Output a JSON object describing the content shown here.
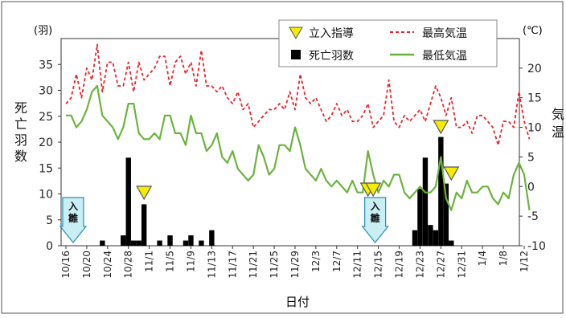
{
  "colors": {
    "max_temp": "#e8262b",
    "min_temp": "#6cb33e",
    "deaths": "#000000",
    "marker_fill": "#f5ec00",
    "marker_stroke": "#555555",
    "arrow_fill": "#c9eef3",
    "arrow_stroke": "#2a8fb0"
  },
  "chart_data": {
    "type": "bar+line",
    "title": "",
    "xlabel": "日付",
    "y_left": {
      "unit_label": "(羽)",
      "label": "死亡羽数",
      "ylim": [
        0,
        40
      ],
      "ticks": [
        "0",
        "5",
        "10",
        "15",
        "20",
        "25",
        "30",
        "35"
      ]
    },
    "y_right": {
      "unit_label": "(℃)",
      "label": "気温",
      "ylim": [
        -10,
        25
      ],
      "ticks": [
        "-10",
        "-5",
        "0",
        "5",
        "10",
        "15",
        "20"
      ]
    },
    "x_ticks": [
      "10/16",
      "10/20",
      "10/24",
      "10/28",
      "11/1",
      "11/5",
      "11/9",
      "11/13",
      "11/17",
      "11/21",
      "11/25",
      "11/29",
      "12/3",
      "12/7",
      "12/11",
      "12/15",
      "12/19",
      "12/23",
      "12/27",
      "12/31",
      "1/4",
      "1/8",
      "1/12"
    ],
    "x_range_days": [
      0,
      88
    ],
    "legend": {
      "placement": "top-right",
      "entries": [
        {
          "key": "marker",
          "label": "立入指導"
        },
        {
          "key": "max",
          "label": "最高気温"
        },
        {
          "key": "deaths",
          "label": "死亡羽数"
        },
        {
          "key": "min",
          "label": "最低気温"
        }
      ]
    },
    "series": [
      {
        "name": "死亡羽数",
        "type": "bar",
        "axis": "left",
        "points": [
          [
            7,
            1
          ],
          [
            11,
            2
          ],
          [
            12,
            17
          ],
          [
            13,
            1
          ],
          [
            14,
            1
          ],
          [
            15,
            8
          ],
          [
            18,
            1
          ],
          [
            20,
            2
          ],
          [
            23,
            1
          ],
          [
            24,
            2
          ],
          [
            26,
            1
          ],
          [
            28,
            3
          ],
          [
            67,
            3
          ],
          [
            68,
            11
          ],
          [
            69,
            17
          ],
          [
            70,
            4
          ],
          [
            71,
            3
          ],
          [
            72,
            21
          ],
          [
            73,
            12
          ],
          [
            74,
            1
          ]
        ]
      },
      {
        "name": "最高気温",
        "type": "line",
        "axis": "right",
        "points": [
          [
            0,
            14
          ],
          [
            1,
            15
          ],
          [
            2,
            19
          ],
          [
            3,
            15
          ],
          [
            4,
            20
          ],
          [
            5,
            18
          ],
          [
            6,
            24
          ],
          [
            7,
            16
          ],
          [
            8,
            21
          ],
          [
            9,
            21
          ],
          [
            10,
            17
          ],
          [
            11,
            17
          ],
          [
            12,
            21
          ],
          [
            13,
            16
          ],
          [
            14,
            21
          ],
          [
            15,
            18
          ],
          [
            16,
            19
          ],
          [
            17,
            20
          ],
          [
            18,
            22
          ],
          [
            19,
            22
          ],
          [
            20,
            17
          ],
          [
            21,
            21
          ],
          [
            22,
            22
          ],
          [
            23,
            19
          ],
          [
            24,
            21
          ],
          [
            25,
            17
          ],
          [
            26,
            23
          ],
          [
            27,
            17
          ],
          [
            28,
            17
          ],
          [
            29,
            16
          ],
          [
            30,
            17
          ],
          [
            31,
            15
          ],
          [
            32,
            14
          ],
          [
            33,
            16
          ],
          [
            34,
            13
          ],
          [
            35,
            14
          ],
          [
            36,
            10
          ],
          [
            37,
            11
          ],
          [
            38,
            12
          ],
          [
            39,
            13
          ],
          [
            40,
            13
          ],
          [
            41,
            14
          ],
          [
            42,
            13
          ],
          [
            43,
            16
          ],
          [
            44,
            13
          ],
          [
            45,
            19
          ],
          [
            46,
            15
          ],
          [
            47,
            14
          ],
          [
            48,
            15
          ],
          [
            49,
            13
          ],
          [
            50,
            11
          ],
          [
            51,
            12
          ],
          [
            52,
            14
          ],
          [
            53,
            12
          ],
          [
            54,
            13
          ],
          [
            55,
            11
          ],
          [
            56,
            11
          ],
          [
            57,
            12
          ],
          [
            58,
            14
          ],
          [
            59,
            10
          ],
          [
            60,
            11
          ],
          [
            61,
            12
          ],
          [
            62,
            18
          ],
          [
            63,
            11
          ],
          [
            64,
            10
          ],
          [
            65,
            12
          ],
          [
            66,
            11
          ],
          [
            67,
            12
          ],
          [
            68,
            13
          ],
          [
            69,
            11
          ],
          [
            70,
            14
          ],
          [
            71,
            17
          ],
          [
            72,
            15
          ],
          [
            73,
            12
          ],
          [
            74,
            15
          ],
          [
            75,
            10
          ],
          [
            76,
            10
          ],
          [
            77,
            11
          ],
          [
            78,
            9
          ],
          [
            79,
            12
          ],
          [
            80,
            12
          ],
          [
            81,
            11
          ],
          [
            82,
            10
          ],
          [
            83,
            7
          ],
          [
            84,
            11
          ],
          [
            85,
            11
          ],
          [
            86,
            10
          ],
          [
            87,
            16
          ],
          [
            88,
            11
          ],
          [
            89,
            8
          ]
        ]
      },
      {
        "name": "最低気温",
        "type": "line",
        "axis": "right",
        "points": [
          [
            0,
            12
          ],
          [
            1,
            12
          ],
          [
            2,
            10
          ],
          [
            3,
            11
          ],
          [
            4,
            13
          ],
          [
            5,
            16
          ],
          [
            6,
            17
          ],
          [
            7,
            12
          ],
          [
            8,
            11
          ],
          [
            9,
            10
          ],
          [
            10,
            8
          ],
          [
            11,
            10
          ],
          [
            12,
            14
          ],
          [
            13,
            14
          ],
          [
            14,
            9
          ],
          [
            15,
            8
          ],
          [
            16,
            8
          ],
          [
            17,
            9
          ],
          [
            18,
            8
          ],
          [
            19,
            12
          ],
          [
            20,
            12
          ],
          [
            21,
            9
          ],
          [
            22,
            9
          ],
          [
            23,
            7
          ],
          [
            24,
            12
          ],
          [
            25,
            9
          ],
          [
            26,
            9
          ],
          [
            27,
            6
          ],
          [
            28,
            7
          ],
          [
            29,
            9
          ],
          [
            30,
            5
          ],
          [
            31,
            4
          ],
          [
            32,
            6
          ],
          [
            33,
            3
          ],
          [
            34,
            2
          ],
          [
            35,
            1
          ],
          [
            36,
            2
          ],
          [
            37,
            7
          ],
          [
            38,
            5
          ],
          [
            39,
            2
          ],
          [
            40,
            3
          ],
          [
            41,
            7
          ],
          [
            42,
            7
          ],
          [
            43,
            6
          ],
          [
            44,
            10
          ],
          [
            45,
            7
          ],
          [
            46,
            3
          ],
          [
            47,
            2
          ],
          [
            48,
            1
          ],
          [
            49,
            3
          ],
          [
            50,
            1
          ],
          [
            51,
            0
          ],
          [
            52,
            1
          ],
          [
            53,
            0
          ],
          [
            54,
            -1
          ],
          [
            55,
            1
          ],
          [
            56,
            -1
          ],
          [
            57,
            -1
          ],
          [
            58,
            6
          ],
          [
            59,
            2
          ],
          [
            60,
            -1
          ],
          [
            61,
            1
          ],
          [
            62,
            0
          ],
          [
            63,
            2
          ],
          [
            64,
            2
          ],
          [
            65,
            -1
          ],
          [
            66,
            -2
          ],
          [
            67,
            -1
          ],
          [
            68,
            0
          ],
          [
            69,
            -1
          ],
          [
            70,
            -1
          ],
          [
            71,
            0
          ],
          [
            72,
            5
          ],
          [
            73,
            -2
          ],
          [
            74,
            -4
          ],
          [
            75,
            -1
          ],
          [
            76,
            -2
          ],
          [
            77,
            1
          ],
          [
            78,
            -1
          ],
          [
            79,
            -1
          ],
          [
            80,
            0
          ],
          [
            81,
            0
          ],
          [
            82,
            -2
          ],
          [
            83,
            -3
          ],
          [
            84,
            -1
          ],
          [
            85,
            -2
          ],
          [
            86,
            2
          ],
          [
            87,
            4
          ],
          [
            88,
            2
          ],
          [
            89,
            -4
          ]
        ]
      },
      {
        "name": "立入指導",
        "type": "marker",
        "x_days": [
          15,
          58,
          59,
          72,
          74
        ]
      }
    ],
    "annotations": [
      {
        "name": "入雛",
        "x_day": 2
      },
      {
        "name": "入雛",
        "x_day": 60
      }
    ]
  }
}
